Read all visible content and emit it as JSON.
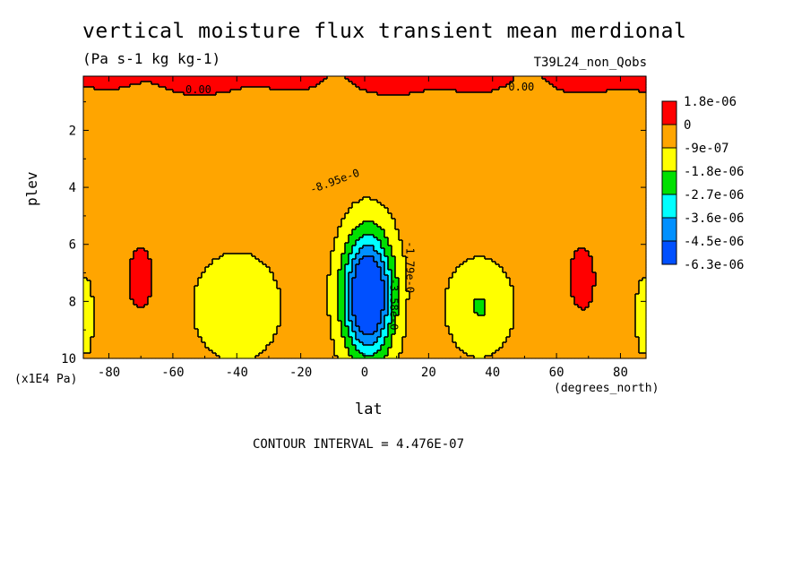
{
  "chart_data": {
    "type": "heatmap",
    "title": "vertical moisture flux transient mean merdional",
    "units": "(Pa s-1 kg kg-1)",
    "run_label": "T39L24_non_Qobs",
    "xlabel": "lat",
    "x_units": "(degrees_north)",
    "ylabel": "plev",
    "y_units": "(x1E4 Pa)",
    "xlim": [
      -88,
      88
    ],
    "ylim": [
      10,
      0.1
    ],
    "x_ticks": [
      -80,
      -60,
      -40,
      -20,
      0,
      20,
      40,
      60,
      80
    ],
    "y_ticks": [
      2,
      4,
      6,
      8,
      10
    ],
    "y_tick_labels": [
      "2",
      "4",
      "6",
      "8",
      "10"
    ],
    "x_tick_labels": [
      "-80",
      "-60",
      "-40",
      "-20",
      "0",
      "20",
      "40",
      "60",
      "80"
    ],
    "contour_interval_text": "CONTOUR INTERVAL = 4.476E-07",
    "colorbar": {
      "labels": [
        "1.8e-06",
        "0",
        "-9e-07",
        "-1.8e-06",
        "-2.7e-06",
        "-3.6e-06",
        "-4.5e-06",
        "-6.3e-06"
      ],
      "colors": [
        "#ff0000",
        "#ffa500",
        "#ffff00",
        "#00e000",
        "#00ffff",
        "#0090ff",
        "#0050ff"
      ]
    },
    "contour_labels": [
      "0.00",
      "0.00",
      "-8.95e-0",
      "-1.79e-0",
      "-3.58e-0"
    ],
    "features": [
      {
        "name": "tropical minimum",
        "lat": 0,
        "plev": 7.5,
        "value": -6.3e-06
      },
      {
        "name": "southern subtropical minimum",
        "lat": -40,
        "plev": 8.2,
        "value": -1.8e-06
      },
      {
        "name": "northern subtropical minimum",
        "lat": 35,
        "plev": 8.2,
        "value": -1.8e-06
      },
      {
        "name": "upper-level positive band",
        "plev": 0.5,
        "value": 1.8e-06
      }
    ]
  }
}
